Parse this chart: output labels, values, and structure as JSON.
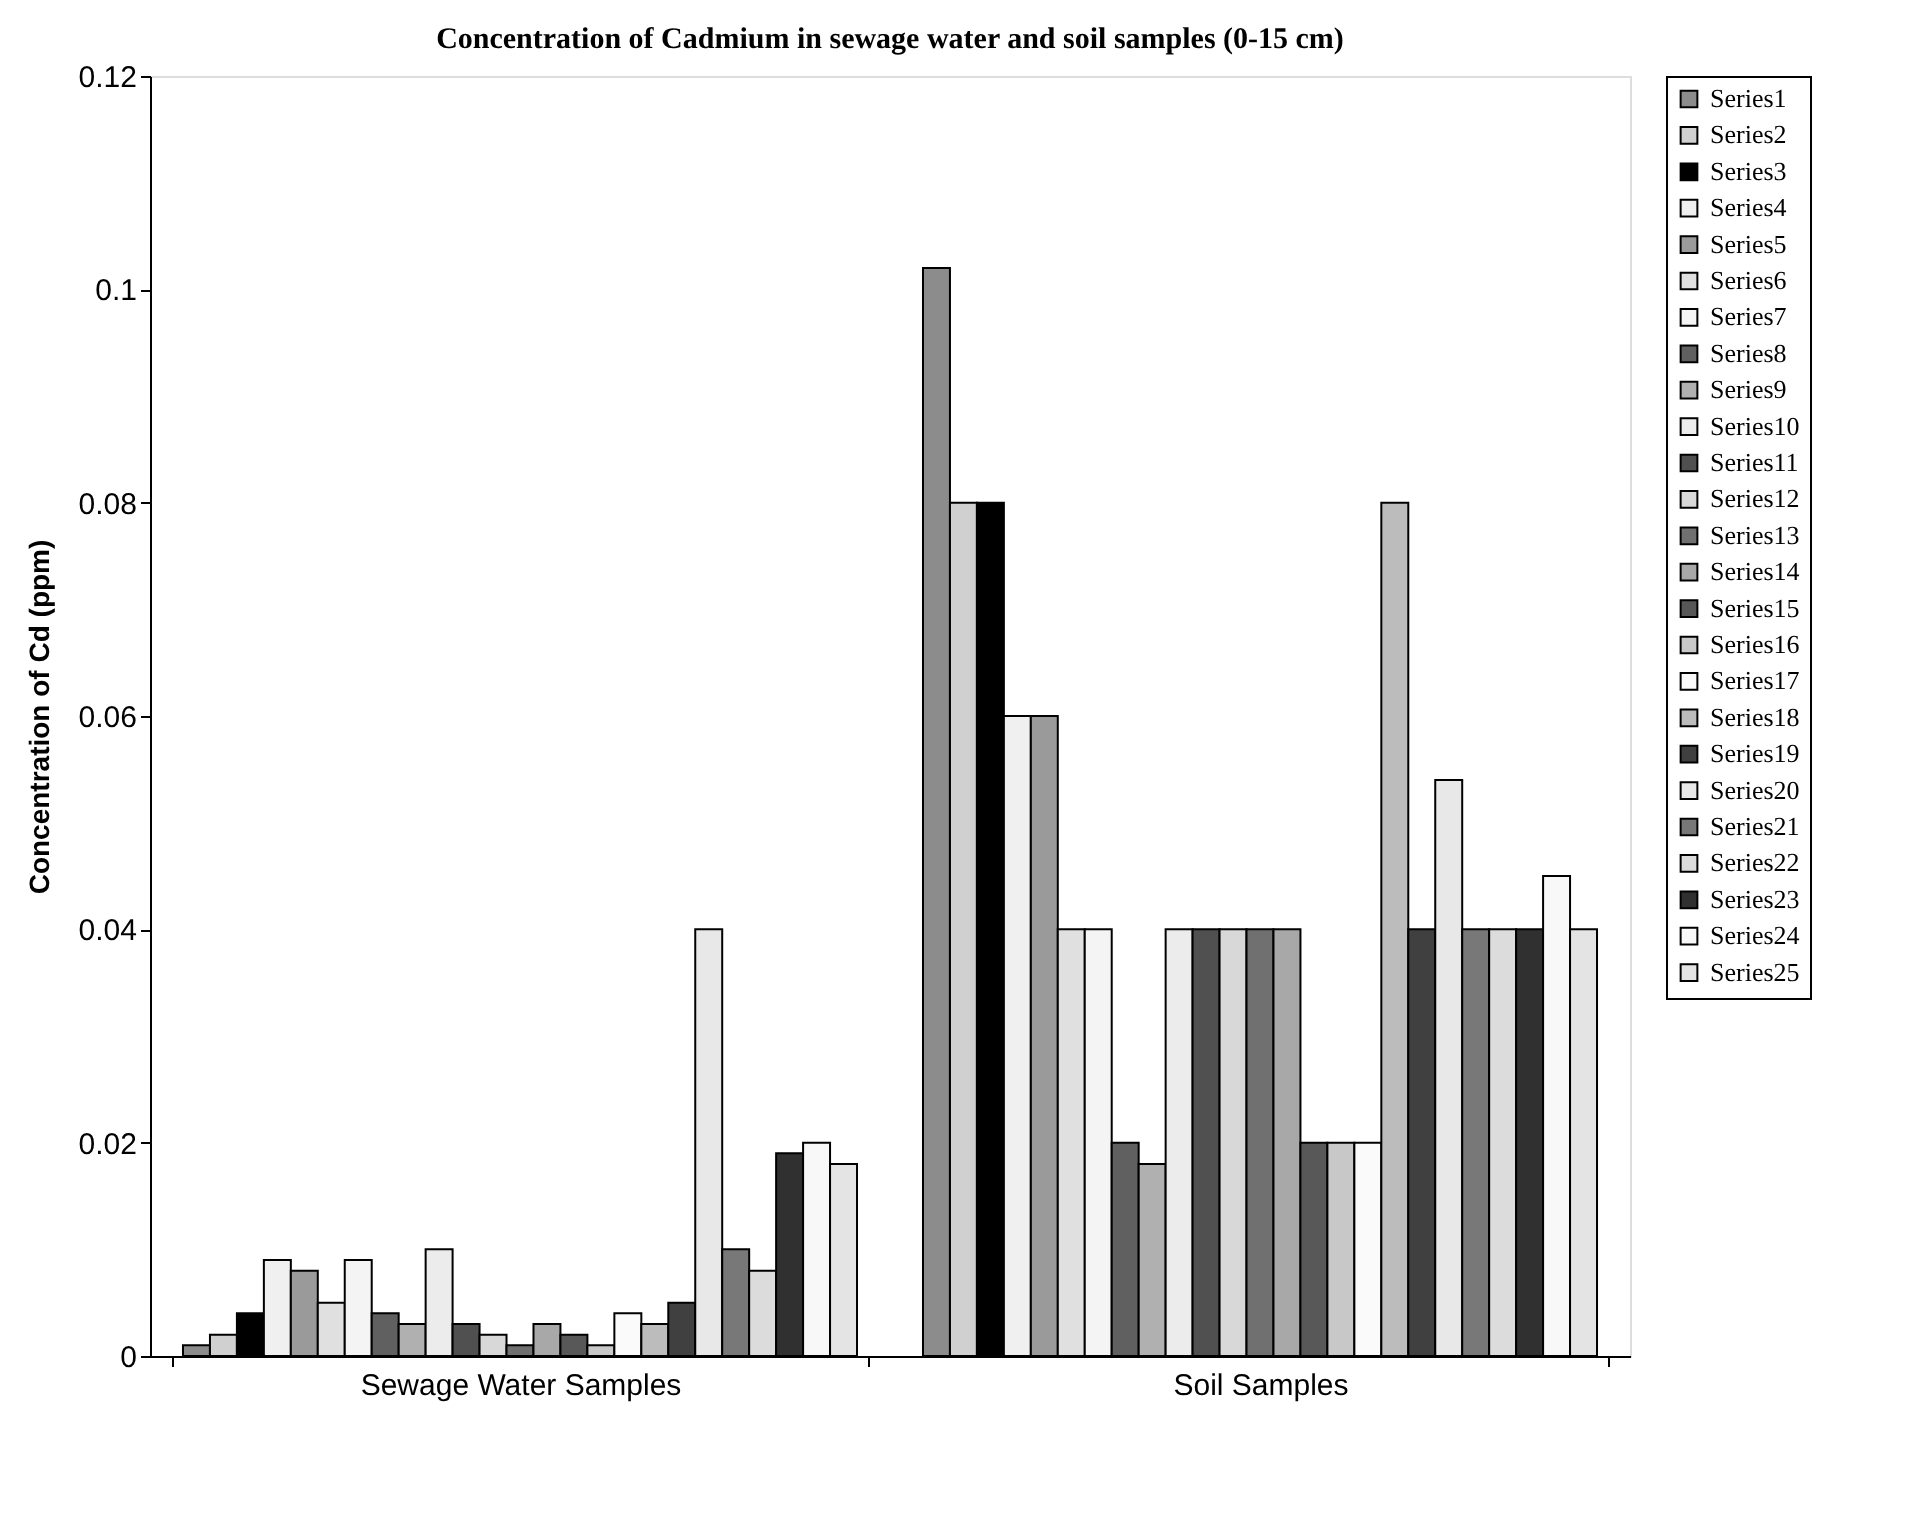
{
  "chart_data": {
    "type": "bar",
    "title": "Concentration of Cadmium in sewage water and soil samples (0-15 cm)",
    "ylabel": "Concentration of Cd (ppm)",
    "categories": [
      "Sewage Water Samples",
      "Soil Samples"
    ],
    "ylim": [
      0,
      0.12
    ],
    "yticks": [
      0,
      0.02,
      0.04,
      0.06,
      0.08,
      0.1,
      0.12
    ],
    "grid": false,
    "legend": "right",
    "series": [
      {
        "name": "Series1",
        "color": "#8c8c8c",
        "values": [
          0.001,
          0.102
        ]
      },
      {
        "name": "Series2",
        "color": "#d0d0d0",
        "values": [
          0.002,
          0.08
        ]
      },
      {
        "name": "Series3",
        "color": "#000000",
        "values": [
          0.004,
          0.08
        ]
      },
      {
        "name": "Series4",
        "color": "#f0f0f0",
        "values": [
          0.009,
          0.06
        ]
      },
      {
        "name": "Series5",
        "color": "#9a9a9a",
        "values": [
          0.008,
          0.06
        ]
      },
      {
        "name": "Series6",
        "color": "#e0e0e0",
        "values": [
          0.005,
          0.04
        ]
      },
      {
        "name": "Series7",
        "color": "#f4f4f4",
        "values": [
          0.009,
          0.04
        ]
      },
      {
        "name": "Series8",
        "color": "#606060",
        "values": [
          0.004,
          0.02
        ]
      },
      {
        "name": "Series9",
        "color": "#b0b0b0",
        "values": [
          0.003,
          0.018
        ]
      },
      {
        "name": "Series10",
        "color": "#ececec",
        "values": [
          0.01,
          0.04
        ]
      },
      {
        "name": "Series11",
        "color": "#505050",
        "values": [
          0.003,
          0.04
        ]
      },
      {
        "name": "Series12",
        "color": "#d8d8d8",
        "values": [
          0.002,
          0.04
        ]
      },
      {
        "name": "Series13",
        "color": "#707070",
        "values": [
          0.001,
          0.04
        ]
      },
      {
        "name": "Series14",
        "color": "#a8a8a8",
        "values": [
          0.003,
          0.04
        ]
      },
      {
        "name": "Series15",
        "color": "#585858",
        "values": [
          0.002,
          0.02
        ]
      },
      {
        "name": "Series16",
        "color": "#c8c8c8",
        "values": [
          0.001,
          0.02
        ]
      },
      {
        "name": "Series17",
        "color": "#fafafa",
        "values": [
          0.004,
          0.02
        ]
      },
      {
        "name": "Series18",
        "color": "#bcbcbc",
        "values": [
          0.003,
          0.08
        ]
      },
      {
        "name": "Series19",
        "color": "#404040",
        "values": [
          0.005,
          0.04
        ]
      },
      {
        "name": "Series20",
        "color": "#e8e8e8",
        "values": [
          0.04,
          0.054
        ]
      },
      {
        "name": "Series21",
        "color": "#787878",
        "values": [
          0.01,
          0.04
        ]
      },
      {
        "name": "Series22",
        "color": "#dcdcdc",
        "values": [
          0.008,
          0.04
        ]
      },
      {
        "name": "Series23",
        "color": "#303030",
        "values": [
          0.019,
          0.04
        ]
      },
      {
        "name": "Series24",
        "color": "#f8f8f8",
        "values": [
          0.02,
          0.045
        ]
      },
      {
        "name": "Series25",
        "color": "#e4e4e4",
        "values": [
          0.018,
          0.04
        ]
      }
    ]
  }
}
